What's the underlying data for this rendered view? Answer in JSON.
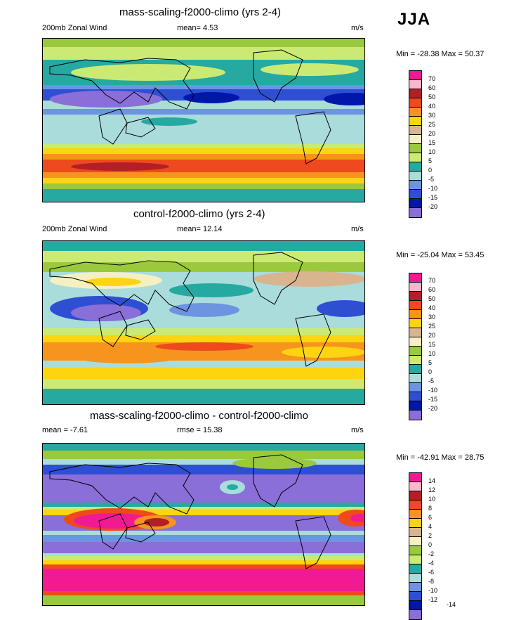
{
  "season": "JJA",
  "panels": [
    {
      "title": "mass-scaling-f2000-climo (yrs 2-4)",
      "left_label": "200mb Zonal Wind",
      "mean_label": "mean=  4.53",
      "units": "m/s",
      "minmax": "Min = -28.38 Max =  50.37",
      "levels": [
        "70",
        "60",
        "50",
        "40",
        "30",
        "25",
        "20",
        "15",
        "10",
        "5",
        "0",
        "-5",
        "-10",
        "-15",
        "-20"
      ]
    },
    {
      "title": "control-f2000-climo (yrs 2-4)",
      "left_label": "200mb Zonal Wind",
      "mean_label": "mean=  12.14",
      "units": "m/s",
      "minmax": "Min = -25.04 Max =  53.45",
      "levels": [
        "70",
        "60",
        "50",
        "40",
        "30",
        "25",
        "20",
        "15",
        "10",
        "5",
        "0",
        "-5",
        "-10",
        "-15",
        "-20"
      ]
    },
    {
      "title": "mass-scaling-f2000-climo - control-f2000-climo",
      "left_label": "mean =  -7.61",
      "mean_label": "rmse =  15.38",
      "units": "m/s",
      "minmax": "Min = -42.91 Max =  28.75",
      "levels": [
        "14",
        "12",
        "10",
        "8",
        "6",
        "4",
        "2",
        "0",
        "-2",
        "-4",
        "-6",
        "-8",
        "-10",
        "-12",
        "-14"
      ]
    }
  ],
  "colors": {
    "palette": [
      "#f21a92",
      "#f7b8cc",
      "#b31f26",
      "#ee4a1d",
      "#f7941d",
      "#fcd411",
      "#d8b58f",
      "#f5f0c2",
      "#9bc93d",
      "#cbea74",
      "#26a9a0",
      "#aadcdc",
      "#6d94e1",
      "#2f4fd3",
      "#0017aa",
      "#8a6fd8"
    ]
  }
}
